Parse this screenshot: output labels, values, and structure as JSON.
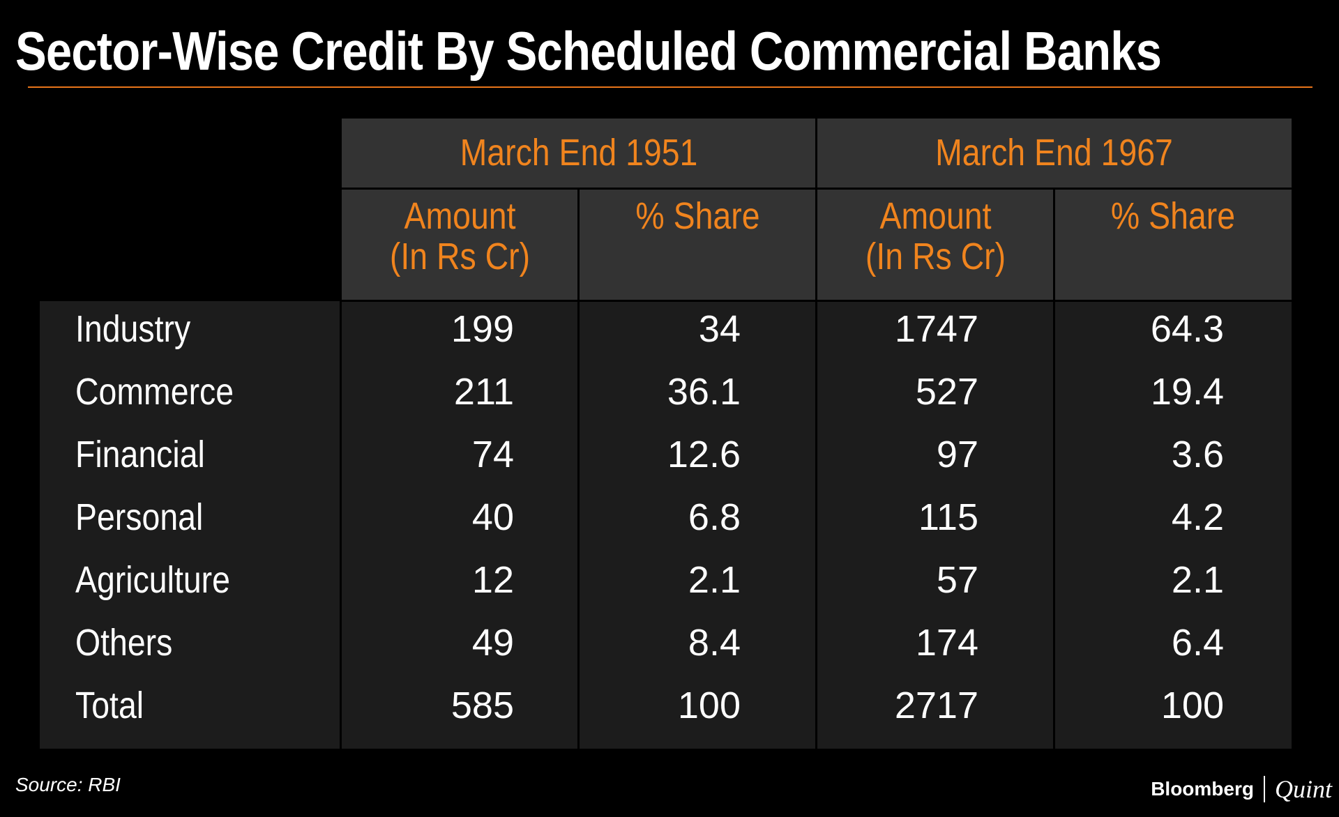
{
  "title": "Sector-Wise Credit By Scheduled Commercial Banks",
  "colors": {
    "accent": "#f0841e",
    "rule": "#e8751a",
    "header_bg": "#333333",
    "body_bg": "#1c1c1c",
    "background": "#000000",
    "text": "#ffffff"
  },
  "chart_data": {
    "type": "table",
    "title": "Sector-Wise Credit By Scheduled Commercial Banks",
    "groups": [
      {
        "label": "March End 1951",
        "columns": [
          "Amount\n(In Rs Cr)",
          "% Share"
        ]
      },
      {
        "label": "March End 1967",
        "columns": [
          "Amount\n(In Rs Cr)",
          "% Share"
        ]
      }
    ],
    "column_headers": {
      "amount_line1": "Amount",
      "amount_line2": "(In Rs Cr)",
      "share": "% Share"
    },
    "rows": [
      {
        "sector": "Industry",
        "amount_1951": "199",
        "share_1951": "34",
        "amount_1967": "1747",
        "share_1967": "64.3"
      },
      {
        "sector": "Commerce",
        "amount_1951": "211",
        "share_1951": "36.1",
        "amount_1967": "527",
        "share_1967": "19.4"
      },
      {
        "sector": "Financial",
        "amount_1951": "74",
        "share_1951": "12.6",
        "amount_1967": "97",
        "share_1967": "3.6"
      },
      {
        "sector": "Personal",
        "amount_1951": "40",
        "share_1951": "6.8",
        "amount_1967": "115",
        "share_1967": "4.2"
      },
      {
        "sector": "Agriculture",
        "amount_1951": "12",
        "share_1951": "2.1",
        "amount_1967": "57",
        "share_1967": "2.1"
      },
      {
        "sector": "Others",
        "amount_1951": "49",
        "share_1951": "8.4",
        "amount_1967": "174",
        "share_1967": "6.4"
      },
      {
        "sector": "Total",
        "amount_1951": "585",
        "share_1951": "100",
        "amount_1967": "2717",
        "share_1967": "100"
      }
    ]
  },
  "source": "Source: RBI",
  "brand": {
    "main": "Bloomberg",
    "sub": "Quint"
  }
}
